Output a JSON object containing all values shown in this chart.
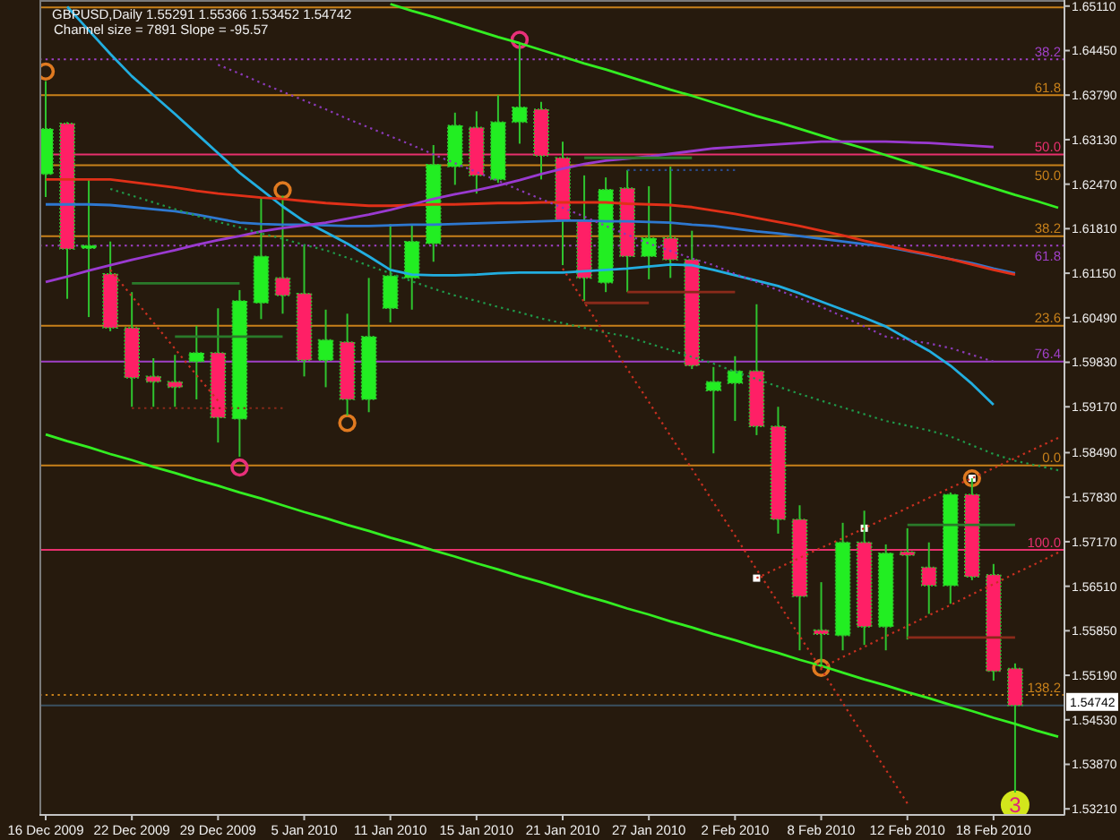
{
  "chart_data": {
    "type": "candlestick",
    "title": "GBPUSD,Daily 1.55291 1.55366 1.53452 1.54742",
    "subtitle": "Channel size = 7891 Slope = -95.57",
    "categories": [
      "16 Dec 2009",
      null,
      null,
      null,
      "22 Dec 2009",
      null,
      null,
      null,
      "29 Dec 2009",
      null,
      null,
      null,
      "5 Jan 2010",
      null,
      null,
      null,
      "11 Jan 2010",
      null,
      null,
      null,
      "15 Jan 2010",
      null,
      null,
      null,
      "21 Jan 2010",
      null,
      null,
      null,
      "27 Jan 2010",
      null,
      null,
      null,
      "2 Feb 2010",
      null,
      null,
      null,
      "8 Feb 2010",
      null,
      null,
      null,
      "12 Feb 2010",
      null,
      null,
      null,
      "18 Feb 2010",
      null,
      null,
      null
    ],
    "ohlc": [
      [
        1.6262,
        1.64,
        1.6228,
        1.6329
      ],
      [
        1.6337,
        1.6339,
        1.6077,
        1.6151
      ],
      [
        1.6154,
        1.6254,
        1.605,
        1.6156
      ],
      [
        1.6114,
        1.6162,
        1.6029,
        1.6034
      ],
      [
        1.6034,
        1.6087,
        1.5917,
        1.596
      ],
      [
        1.5962,
        1.5989,
        1.5917,
        1.5954
      ],
      [
        1.5954,
        1.5994,
        1.5917,
        1.5946
      ],
      [
        1.5984,
        1.6037,
        1.5928,
        1.5997
      ],
      [
        1.5997,
        1.6063,
        1.5864,
        1.5901
      ],
      [
        1.5899,
        1.609,
        1.5843,
        1.6074
      ],
      [
        1.6071,
        1.6228,
        1.6047,
        1.614
      ],
      [
        1.6108,
        1.623,
        1.6055,
        1.6082
      ],
      [
        1.6085,
        1.6156,
        1.5962,
        1.5986
      ],
      [
        1.5986,
        1.6061,
        1.5946,
        1.6016
      ],
      [
        1.6013,
        1.6055,
        1.5904,
        1.5928
      ],
      [
        1.5928,
        1.6108,
        1.5909,
        1.6021
      ],
      [
        1.6063,
        1.6188,
        1.6042,
        1.6111
      ],
      [
        1.6108,
        1.6188,
        1.6061,
        1.6162
      ],
      [
        1.6159,
        1.6305,
        1.6132,
        1.6276
      ],
      [
        1.6273,
        1.6353,
        1.6246,
        1.6334
      ],
      [
        1.6331,
        1.6355,
        1.6233,
        1.626
      ],
      [
        1.6254,
        1.6379,
        1.6249,
        1.6339
      ],
      [
        1.6339,
        1.6456,
        1.6307,
        1.6361
      ],
      [
        1.6358,
        1.6369,
        1.6254,
        1.6289
      ],
      [
        1.6286,
        1.631,
        1.6127,
        1.6193
      ],
      [
        1.6193,
        1.626,
        1.6074,
        1.6108
      ],
      [
        1.6101,
        1.6257,
        1.6087,
        1.6239
      ],
      [
        1.6241,
        1.6268,
        1.6087,
        1.614
      ],
      [
        1.614,
        1.6244,
        1.6106,
        1.6167
      ],
      [
        1.6167,
        1.6273,
        1.6108,
        1.6135
      ],
      [
        1.6135,
        1.6178,
        1.5973,
        1.5978
      ],
      [
        1.5941,
        1.5976,
        1.5848,
        1.5954
      ],
      [
        1.5952,
        1.5992,
        1.5896,
        1.597
      ],
      [
        1.597,
        1.6069,
        1.5875,
        1.5888
      ],
      [
        1.5888,
        1.5917,
        1.5729,
        1.575
      ],
      [
        1.575,
        1.5771,
        1.5556,
        1.5636
      ],
      [
        1.5586,
        1.5657,
        1.553,
        1.558
      ],
      [
        1.5578,
        1.5745,
        1.5556,
        1.5716
      ],
      [
        1.5716,
        1.5763,
        1.5564,
        1.5591
      ],
      [
        1.5591,
        1.5713,
        1.5556,
        1.57
      ],
      [
        1.5702,
        1.5737,
        1.5572,
        1.5697
      ],
      [
        1.5679,
        1.5716,
        1.561,
        1.5652
      ],
      [
        1.5652,
        1.579,
        1.5625,
        1.5787
      ],
      [
        1.5787,
        1.5811,
        1.566,
        1.5665
      ],
      [
        1.5668,
        1.5684,
        1.5511,
        1.5525
      ],
      [
        1.55291,
        1.55366,
        1.53452,
        1.54742
      ],
      null,
      null
    ],
    "colors": [
      "#22ee22",
      "#ff1f66",
      "#22ee22",
      "#ff1f66",
      "#ff1f66",
      "#ff1f66",
      "#ff1f66",
      "#22ee22",
      "#ff1f66",
      "#22ee22",
      "#22ee22",
      "#ff1f66",
      "#ff1f66",
      "#22ee22",
      "#ff1f66",
      "#22ee22",
      "#22ee22",
      "#22ee22",
      "#22ee22",
      "#22ee22",
      "#ff1f66",
      "#22ee22",
      "#22ee22",
      "#ff1f66",
      "#ff1f66",
      "#ff1f66",
      "#22ee22",
      "#ff1f66",
      "#22ee22",
      "#ff1f66",
      "#ff1f66",
      "#22ee22",
      "#22ee22",
      "#ff1f66",
      "#ff1f66",
      "#ff1f66",
      "#ff1f66",
      "#22ee22",
      "#ff1f66",
      "#22ee22",
      "#ff1f66",
      "#ff1f66",
      "#22ee22",
      "#ff1f66",
      "#ff1f66",
      "#ff1f66",
      null,
      null
    ],
    "series": [
      {
        "type": "line",
        "color": "#33ee22",
        "values": [
          null,
          null,
          null,
          null,
          null,
          null,
          null,
          null,
          null,
          null,
          null,
          null,
          null,
          null,
          null,
          null,
          1.6514,
          1.6504,
          1.6495,
          1.6485,
          1.6475,
          1.6465,
          1.6456,
          1.6446,
          1.6436,
          1.6426,
          1.6417,
          1.6407,
          1.6397,
          1.6387,
          1.6378,
          1.6368,
          1.6358,
          1.6348,
          1.6339,
          1.6329,
          1.6319,
          1.6309,
          1.63,
          1.629,
          1.628,
          1.627,
          1.6261,
          1.6251,
          1.6241,
          1.6231,
          1.6222,
          1.6212
        ]
      },
      {
        "type": "line",
        "color": "#33ee22",
        "values": [
          1.5876,
          1.5866,
          1.5857,
          1.5847,
          1.5838,
          1.5828,
          1.5819,
          1.5809,
          1.58,
          1.579,
          1.5781,
          1.5771,
          1.5761,
          1.5752,
          1.5742,
          1.5733,
          1.5723,
          1.5714,
          1.5704,
          1.5695,
          1.5685,
          1.5676,
          1.5666,
          1.5657,
          1.5647,
          1.5637,
          1.5628,
          1.5618,
          1.5609,
          1.5599,
          1.559,
          1.558,
          1.5571,
          1.5561,
          1.5552,
          1.5542,
          1.5533,
          1.5523,
          1.5513,
          1.5504,
          1.5494,
          1.5485,
          1.5475,
          1.5466,
          1.5456,
          1.5447,
          1.5437,
          1.5428
        ]
      },
      {
        "type": "line",
        "color": "#22aee0",
        "values": [
          null,
          1.651,
          1.6475,
          1.644,
          1.6407,
          1.6379,
          1.6351,
          1.6322,
          1.6293,
          1.6264,
          1.6239,
          1.6214,
          1.6192,
          1.6176,
          1.6159,
          1.614,
          1.612,
          1.6113,
          1.6112,
          1.6112,
          1.6113,
          1.6115,
          1.6116,
          1.6116,
          1.6116,
          1.6118,
          1.612,
          1.6122,
          1.6125,
          1.6128,
          1.6127,
          1.612,
          1.6112,
          1.6104,
          1.6096,
          1.6085,
          1.6073,
          1.6061,
          1.6049,
          1.6036,
          1.6018,
          1.6,
          1.5978,
          1.5951,
          1.592,
          null,
          null,
          null
        ]
      },
      {
        "type": "line",
        "color": "#2e78d0",
        "values": [
          1.6217,
          1.6217,
          1.6217,
          1.6216,
          1.6213,
          1.621,
          1.6207,
          1.6202,
          1.6196,
          1.619,
          1.6188,
          1.6187,
          1.6187,
          1.6186,
          1.6185,
          1.6185,
          1.6186,
          1.6187,
          1.6187,
          1.6188,
          1.6189,
          1.619,
          1.6191,
          1.6192,
          1.6193,
          1.6193,
          1.6192,
          1.6192,
          1.6191,
          1.619,
          1.6187,
          1.6185,
          1.6181,
          1.6177,
          1.6174,
          1.617,
          1.6166,
          1.6162,
          1.6158,
          1.6154,
          1.6148,
          1.6142,
          1.6136,
          1.613,
          1.6122,
          1.6115,
          null,
          null
        ]
      },
      {
        "type": "line",
        "color": "#e03018",
        "values": [
          1.6254,
          1.6254,
          1.6254,
          1.6254,
          1.625,
          1.6246,
          1.6242,
          1.6237,
          1.6233,
          1.623,
          1.6227,
          1.6225,
          1.6222,
          1.6219,
          1.6217,
          1.6215,
          1.6215,
          1.6216,
          1.6217,
          1.6217,
          1.6218,
          1.6219,
          1.6219,
          1.622,
          1.622,
          1.622,
          1.622,
          1.6218,
          1.6217,
          1.6216,
          1.6213,
          1.6208,
          1.6203,
          1.6197,
          1.6191,
          1.6185,
          1.6178,
          1.6171,
          1.6163,
          1.6156,
          1.6149,
          1.6143,
          1.6136,
          1.6128,
          1.612,
          1.6113,
          null,
          null
        ]
      },
      {
        "type": "line",
        "color": "#9a3ad0",
        "values": [
          1.6102,
          1.611,
          1.6119,
          1.6127,
          1.6135,
          1.6142,
          1.6149,
          1.6157,
          1.6164,
          1.617,
          1.6177,
          1.6182,
          1.6186,
          1.619,
          1.6196,
          1.6202,
          1.6209,
          1.6217,
          1.6225,
          1.6232,
          1.6238,
          1.6245,
          1.6253,
          1.6262,
          1.627,
          1.6277,
          1.6282,
          1.6285,
          1.6288,
          1.6292,
          1.6296,
          1.63,
          1.6302,
          1.6304,
          1.6306,
          1.6308,
          1.631,
          1.631,
          1.631,
          1.631,
          1.6309,
          1.6308,
          1.6306,
          1.6304,
          1.6302,
          null,
          null,
          null
        ]
      },
      {
        "type": "line",
        "color": "#1f9a4a",
        "line_style": "dotted",
        "values": [
          null,
          null,
          null,
          1.624,
          1.623,
          1.622,
          1.621,
          1.62,
          1.6191,
          1.6183,
          1.6174,
          1.6166,
          1.6157,
          1.6149,
          1.6138,
          1.6126,
          1.6115,
          1.6103,
          1.6092,
          1.6082,
          1.6074,
          1.6065,
          1.6057,
          1.6048,
          1.6041,
          1.6034,
          1.6027,
          1.6021,
          1.6011,
          1.6001,
          1.5991,
          1.5981,
          1.5969,
          1.5958,
          1.5947,
          1.5936,
          1.5926,
          1.5916,
          1.5906,
          1.5896,
          1.5889,
          1.5882,
          1.5873,
          1.586,
          1.5847,
          1.5837,
          1.583,
          1.5823
        ]
      },
      {
        "type": "line",
        "color": "#8a3ab8",
        "line_style": "dotted",
        "values": [
          null,
          null,
          null,
          null,
          null,
          null,
          null,
          null,
          1.6424,
          1.6411,
          1.6397,
          1.6384,
          1.6371,
          1.6358,
          1.6344,
          1.6331,
          1.6318,
          1.6305,
          1.6291,
          1.6278,
          1.6265,
          1.6252,
          1.6238,
          1.6225,
          1.6212,
          1.6199,
          1.6185,
          1.6172,
          1.6159,
          1.6148,
          1.6137,
          1.6127,
          1.6114,
          1.6102,
          1.609,
          1.6078,
          1.6065,
          1.6051,
          1.6036,
          1.6021,
          1.6016,
          1.6011,
          1.6004,
          1.5994,
          1.5984,
          null,
          null,
          null
        ]
      },
      {
        "type": "line",
        "color": "#c83020",
        "line_style": "dotted",
        "values": [
          null,
          null,
          null,
          null,
          null,
          null,
          null,
          null,
          null,
          null,
          null,
          null,
          null,
          null,
          null,
          null,
          null,
          null,
          null,
          null,
          null,
          null,
          null,
          null,
          1.6122,
          1.6072,
          1.6023,
          1.5973,
          1.5924,
          1.5874,
          1.5825,
          1.5775,
          1.5726,
          1.5676,
          1.5627,
          1.5577,
          1.5528,
          1.5478,
          1.5428,
          1.5379,
          1.5329,
          null,
          null,
          null,
          null,
          null,
          null,
          null
        ]
      },
      {
        "type": "line",
        "color": "#c83020",
        "line_style": "dotted",
        "values": [
          null,
          null,
          null,
          1.612,
          1.6081,
          1.6042,
          1.6003,
          1.5964,
          1.5926,
          null,
          null,
          null,
          null,
          null,
          null,
          null,
          null,
          null,
          null,
          null,
          null,
          null,
          null,
          null,
          null,
          null,
          null,
          null,
          null,
          null,
          null,
          null,
          null,
          null,
          null,
          null,
          null,
          null,
          null,
          null,
          null,
          null,
          null,
          null,
          null,
          null,
          null,
          null
        ]
      },
      {
        "type": "line",
        "color": "#c83020",
        "line_style": "dotted",
        "values": [
          null,
          null,
          null,
          null,
          null,
          null,
          null,
          null,
          null,
          null,
          null,
          null,
          null,
          null,
          null,
          null,
          null,
          null,
          null,
          null,
          null,
          null,
          null,
          null,
          null,
          null,
          null,
          null,
          null,
          null,
          null,
          null,
          null,
          1.5663,
          1.5678,
          1.5693,
          1.5708,
          1.5722,
          1.5737,
          1.5752,
          1.5767,
          1.5782,
          1.5797,
          1.5811,
          1.5826,
          1.5841,
          1.5856,
          1.5871
        ]
      },
      {
        "type": "line",
        "color": "#c83020",
        "line_style": "dotted",
        "values": [
          null,
          null,
          null,
          null,
          null,
          null,
          null,
          null,
          null,
          null,
          null,
          null,
          null,
          null,
          null,
          null,
          null,
          null,
          null,
          null,
          null,
          null,
          null,
          null,
          null,
          null,
          null,
          null,
          null,
          null,
          null,
          null,
          null,
          null,
          null,
          null,
          1.553,
          1.5546,
          1.5561,
          1.5577,
          1.5592,
          1.5608,
          1.5623,
          1.5639,
          1.5654,
          1.567,
          1.5685,
          1.5701
        ]
      },
      {
        "type": "line",
        "color": "#2a7a2a",
        "values": [
          null,
          null,
          null,
          null,
          1.61,
          1.61,
          1.61,
          1.61,
          1.61,
          1.61,
          null,
          null,
          null,
          null,
          null,
          null,
          null,
          null,
          null,
          null,
          null,
          null,
          null,
          null,
          null,
          null,
          null,
          null,
          null,
          null,
          null,
          null,
          null,
          null,
          null,
          null,
          null,
          null,
          null,
          null,
          null,
          null,
          null,
          null,
          null,
          null,
          null,
          null
        ]
      },
      {
        "type": "line",
        "color": "#8a2a1a",
        "line_style": "dotted",
        "values": [
          null,
          null,
          null,
          null,
          1.5915,
          1.5915,
          1.5915,
          1.5915,
          1.5915,
          1.5915,
          1.5915,
          1.5915,
          null,
          null,
          null,
          null,
          null,
          null,
          null,
          null,
          null,
          null,
          null,
          null,
          null,
          null,
          null,
          null,
          null,
          null,
          null,
          null,
          null,
          null,
          null,
          null,
          null,
          null,
          null,
          null,
          null,
          null,
          null,
          null,
          null,
          null,
          null,
          null
        ]
      },
      {
        "type": "line",
        "color": "#2a7a2a",
        "values": [
          null,
          null,
          null,
          null,
          null,
          null,
          1.6021,
          1.6021,
          1.6021,
          1.6021,
          1.6021,
          1.6021,
          null,
          null,
          null,
          null,
          null,
          null,
          null,
          null,
          null,
          null,
          null,
          null,
          null,
          null,
          null,
          null,
          null,
          null,
          null,
          null,
          null,
          null,
          null,
          null,
          null,
          null,
          null,
          null,
          null,
          null,
          null,
          null,
          null,
          null,
          null,
          null
        ]
      },
      {
        "type": "line",
        "color": "#2a7a2a",
        "values": [
          null,
          null,
          null,
          null,
          null,
          null,
          null,
          null,
          null,
          null,
          null,
          null,
          null,
          null,
          null,
          null,
          null,
          null,
          null,
          null,
          null,
          null,
          null,
          null,
          null,
          1.6286,
          1.6286,
          1.6286,
          1.6286,
          1.6286,
          1.6286,
          null,
          null,
          null,
          null,
          null,
          null,
          null,
          null,
          null,
          null,
          null,
          null,
          null,
          null,
          null,
          null,
          null
        ]
      },
      {
        "type": "line",
        "color": "#2a4a8a",
        "line_style": "dotted",
        "values": [
          null,
          null,
          null,
          null,
          null,
          null,
          null,
          null,
          null,
          null,
          null,
          null,
          null,
          null,
          null,
          null,
          null,
          null,
          null,
          null,
          null,
          null,
          null,
          null,
          null,
          null,
          null,
          1.6268,
          1.6268,
          1.6268,
          1.6268,
          1.6268,
          1.6268,
          null,
          null,
          null,
          null,
          null,
          null,
          null,
          null,
          null,
          null,
          null,
          null,
          null,
          null,
          null
        ]
      },
      {
        "type": "line",
        "color": "#8a2a1a",
        "values": [
          null,
          null,
          null,
          null,
          null,
          null,
          null,
          null,
          null,
          null,
          null,
          null,
          null,
          null,
          null,
          null,
          null,
          null,
          null,
          null,
          null,
          null,
          null,
          null,
          null,
          null,
          null,
          1.6087,
          1.6087,
          1.6087,
          1.6087,
          1.6087,
          1.6087,
          null,
          null,
          null,
          null,
          null,
          null,
          null,
          null,
          null,
          null,
          null,
          null,
          null,
          null,
          null
        ]
      },
      {
        "type": "line",
        "color": "#8a2a1a",
        "values": [
          null,
          null,
          null,
          null,
          null,
          null,
          null,
          null,
          null,
          null,
          null,
          null,
          null,
          null,
          null,
          null,
          null,
          null,
          null,
          null,
          null,
          null,
          null,
          null,
          null,
          1.6071,
          1.6071,
          1.6071,
          1.6071,
          null,
          null,
          null,
          null,
          null,
          null,
          null,
          null,
          null,
          null,
          null,
          null,
          null,
          null,
          null,
          null,
          null,
          null,
          null
        ]
      },
      {
        "type": "line",
        "color": "#2a7a2a",
        "values": [
          null,
          null,
          null,
          null,
          null,
          null,
          null,
          null,
          null,
          null,
          null,
          null,
          null,
          null,
          null,
          null,
          null,
          null,
          null,
          null,
          null,
          null,
          null,
          null,
          null,
          null,
          null,
          null,
          null,
          null,
          null,
          null,
          null,
          null,
          null,
          null,
          null,
          null,
          null,
          null,
          1.5742,
          1.5742,
          1.5742,
          1.5742,
          1.5742,
          1.5742,
          null,
          null
        ]
      },
      {
        "type": "line",
        "color": "#8a2a1a",
        "values": [
          null,
          null,
          null,
          null,
          null,
          null,
          null,
          null,
          null,
          null,
          null,
          null,
          null,
          null,
          null,
          null,
          null,
          null,
          null,
          null,
          null,
          null,
          null,
          null,
          null,
          null,
          null,
          null,
          null,
          null,
          null,
          null,
          null,
          null,
          null,
          null,
          null,
          null,
          null,
          null,
          1.5575,
          1.5575,
          1.5575,
          1.5575,
          1.5575,
          1.5575,
          null,
          null
        ]
      },
      {
        "type": "scatter",
        "color": "#e07a20",
        "marker": "circle",
        "values": [
          1.6414,
          null,
          null,
          null,
          null,
          null,
          null,
          null,
          null,
          null,
          null,
          1.6238,
          null,
          null,
          1.5893,
          null,
          null,
          null,
          null,
          null,
          null,
          null,
          null,
          null,
          null,
          null,
          null,
          null,
          null,
          null,
          null,
          null,
          null,
          null,
          null,
          null,
          1.553,
          null,
          null,
          null,
          null,
          null,
          null,
          1.5811,
          null,
          null,
          null,
          null
        ]
      },
      {
        "type": "scatter",
        "color": "#e8307a",
        "marker": "circle",
        "values": [
          null,
          null,
          null,
          null,
          null,
          null,
          null,
          null,
          null,
          1.5827,
          null,
          null,
          null,
          null,
          null,
          null,
          null,
          null,
          null,
          null,
          null,
          null,
          1.6461,
          null,
          null,
          null,
          null,
          null,
          null,
          null,
          null,
          null,
          null,
          null,
          null,
          null,
          null,
          null,
          null,
          null,
          null,
          null,
          null,
          null,
          null,
          null,
          null,
          null
        ]
      },
      {
        "type": "scatter",
        "color": "#ffffff",
        "marker": "square",
        "values": [
          null,
          null,
          null,
          null,
          null,
          null,
          null,
          null,
          null,
          null,
          null,
          null,
          null,
          null,
          null,
          null,
          null,
          null,
          null,
          null,
          null,
          null,
          null,
          null,
          null,
          null,
          null,
          null,
          null,
          null,
          null,
          null,
          null,
          1.5663,
          null,
          null,
          null,
          null,
          1.5737,
          null,
          null,
          null,
          null,
          1.5811,
          null,
          null,
          null,
          null
        ]
      },
      {
        "type": "scatter",
        "color": "#d3e61c",
        "marker": "circle",
        "values": [
          null,
          null,
          null,
          null,
          null,
          null,
          null,
          null,
          null,
          null,
          null,
          null,
          null,
          null,
          null,
          null,
          null,
          null,
          null,
          null,
          null,
          null,
          null,
          null,
          null,
          null,
          null,
          null,
          null,
          null,
          null,
          null,
          null,
          null,
          null,
          null,
          null,
          null,
          null,
          null,
          null,
          null,
          null,
          null,
          null,
          1.5327,
          null,
          null
        ]
      }
    ],
    "ref_lines": [
      {
        "axis": "y",
        "value": 1.6509,
        "color": "#c8811a"
      },
      {
        "axis": "y",
        "value": 1.6432,
        "color": "#a040c8",
        "line_style": "dotted"
      },
      {
        "axis": "y",
        "value": 1.6379,
        "color": "#c8811a"
      },
      {
        "axis": "y",
        "value": 1.6291,
        "color": "#e8306e"
      },
      {
        "axis": "y",
        "value": 1.6275,
        "color": "#c8811a"
      },
      {
        "axis": "y",
        "value": 1.617,
        "color": "#c8811a"
      },
      {
        "axis": "y",
        "value": 1.6156,
        "color": "#a040c8",
        "line_style": "dotted"
      },
      {
        "axis": "y",
        "value": 1.6037,
        "color": "#c8811a"
      },
      {
        "axis": "y",
        "value": 1.5984,
        "color": "#a040c8"
      },
      {
        "axis": "y",
        "value": 1.583,
        "color": "#c8811a"
      },
      {
        "axis": "y",
        "value": 1.5705,
        "color": "#e8306e"
      },
      {
        "axis": "y",
        "value": 1.549,
        "color": "#c8811a",
        "line_style": "dotted"
      },
      {
        "axis": "y",
        "value": 1.54742,
        "label": "1.54742",
        "color": "#3a5060"
      }
    ],
    "annotations": [
      {
        "text": "38.2",
        "y": 1.6432
      },
      {
        "text": "61.8",
        "y": 1.6379
      },
      {
        "text": "50.0",
        "y": 1.6291
      },
      {
        "text": "50.0",
        "y": 1.6275
      },
      {
        "text": "38.2",
        "y": 1.617
      },
      {
        "text": "61.8",
        "y": 1.6156
      },
      {
        "text": "23.6",
        "y": 1.6037
      },
      {
        "text": "76.4",
        "y": 1.5984
      },
      {
        "text": "0.0",
        "y": 1.583
      },
      {
        "text": "100.0",
        "y": 1.5705
      },
      {
        "text": "138.2",
        "y": 1.549
      },
      {
        "text": "3",
        "y": 1.5327
      }
    ],
    "ylim": [
      1.5312,
      1.652
    ],
    "yticks": [
      {
        "value": 1.6511,
        "label": "1.65110"
      },
      {
        "value": 1.6445,
        "label": "1.64450"
      },
      {
        "value": 1.6379,
        "label": "1.63790"
      },
      {
        "value": 1.6313,
        "label": "1.63130"
      },
      {
        "value": 1.6247,
        "label": "1.62470"
      },
      {
        "value": 1.6181,
        "label": "1.61810"
      },
      {
        "value": 1.6115,
        "label": "1.61150"
      },
      {
        "value": 1.6049,
        "label": "1.60490"
      },
      {
        "value": 1.5983,
        "label": "1.59830"
      },
      {
        "value": 1.5917,
        "label": "1.59170"
      },
      {
        "value": 1.5849,
        "label": "1.58490"
      },
      {
        "value": 1.5783,
        "label": "1.57830"
      },
      {
        "value": 1.5717,
        "label": "1.57170"
      },
      {
        "value": 1.5651,
        "label": "1.56510"
      },
      {
        "value": 1.5585,
        "label": "1.55850"
      },
      {
        "value": 1.5519,
        "label": "1.55190"
      },
      {
        "value": 1.5453,
        "label": "1.54530"
      },
      {
        "value": 1.5387,
        "label": "1.53870"
      },
      {
        "value": 1.5321,
        "label": "1.53210"
      }
    ]
  }
}
